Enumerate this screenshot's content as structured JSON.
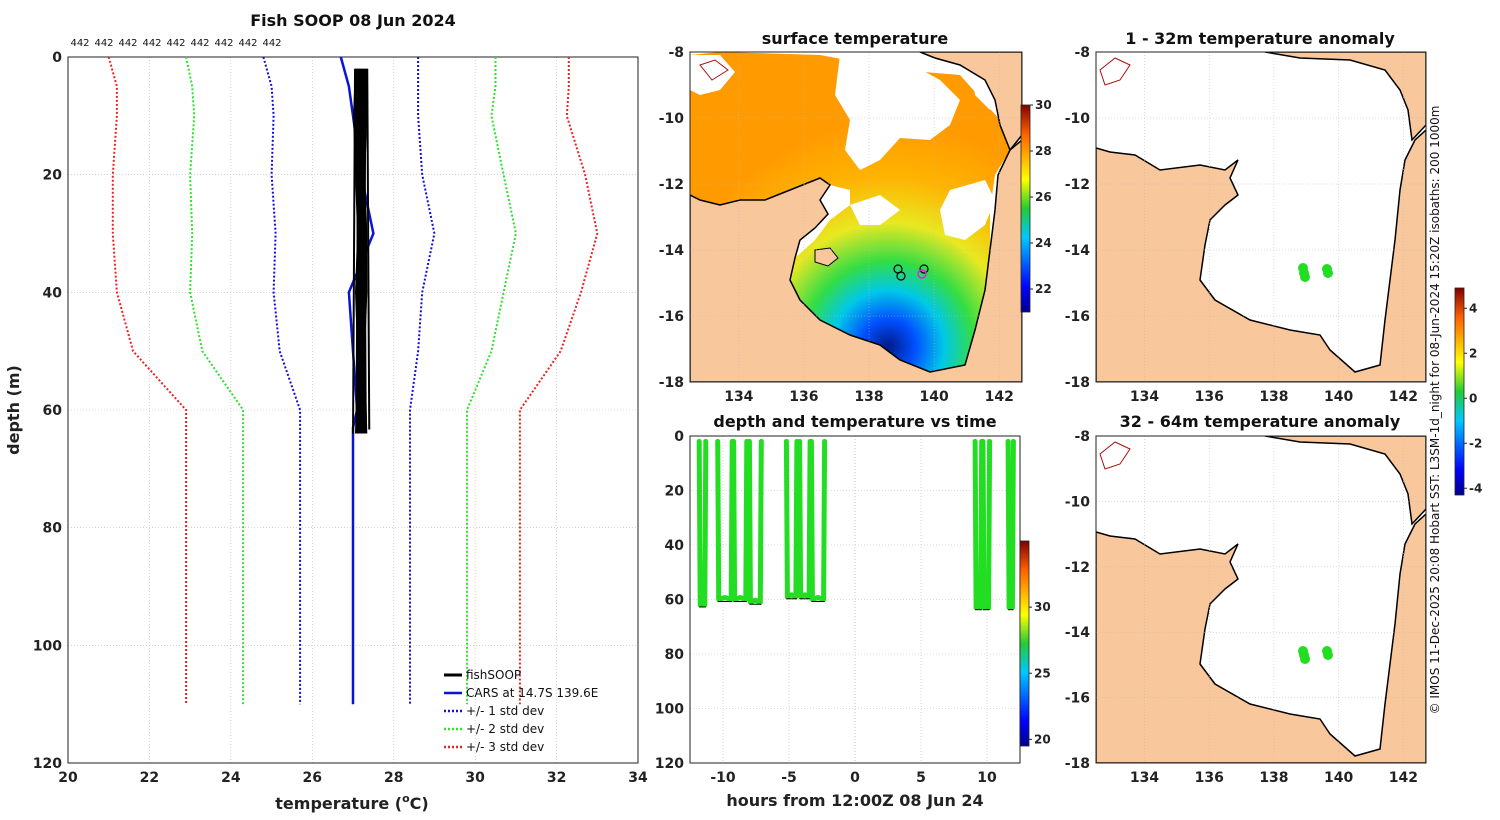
{
  "credit": "© IMOS 11-Dec-2025 20:08 Hobart SST: L3SM-1d_night for 08-Jun-2024 15:20Z isobaths: 200  1000m",
  "colors": {
    "fishsoop": "#000000",
    "cars": "#0a14d6",
    "std1": "#1010d8",
    "std2": "#33dd33",
    "std3": "#ee2222",
    "land": "#f8c79c",
    "marker": "#22dd22",
    "grid": "#bbbbbb"
  },
  "chart_data": [
    {
      "id": "profile",
      "type": "line",
      "title": "Fish SOOP 08 Jun 2024",
      "xlabel_main": "temperature (",
      "xlabel_sup": "o",
      "xlabel_unit": "C)",
      "ylabel": "depth (m)",
      "xlim": [
        20,
        34
      ],
      "ylim": [
        0,
        120
      ],
      "y_inverted": true,
      "x_ticks": [
        "20",
        "22",
        "24",
        "26",
        "28",
        "30",
        "32",
        "34"
      ],
      "y_ticks": [
        "0",
        "20",
        "40",
        "60",
        "80",
        "100",
        "120"
      ],
      "top_labels": [
        "442",
        "442",
        "442",
        "442",
        "442",
        "442",
        "442",
        "442",
        "442"
      ],
      "legend": [
        "fishSOOP",
        "CARS at 14.7S 139.6E",
        "+/- 1 std dev",
        "+/- 2 std dev",
        "+/- 3 std dev"
      ],
      "series": [
        {
          "name": "CARS mean",
          "style": "solid",
          "color": "#0a14d6",
          "depth": [
            0,
            5,
            10,
            20,
            30,
            40,
            50,
            60,
            63,
            110
          ],
          "temp": [
            26.7,
            26.9,
            27.0,
            27.2,
            27.5,
            26.9,
            27.0,
            27.1,
            27.0,
            27.0
          ]
        },
        {
          "name": "-1 std",
          "style": "dot",
          "color": "#1010d8",
          "depth": [
            0,
            5,
            10,
            20,
            30,
            40,
            50,
            60,
            110
          ],
          "temp": [
            24.8,
            25.0,
            25.05,
            25.0,
            25.1,
            25.05,
            25.2,
            25.7,
            25.7
          ]
        },
        {
          "name": "+1 std",
          "style": "dot",
          "color": "#1010d8",
          "depth": [
            0,
            5,
            10,
            20,
            30,
            40,
            50,
            60,
            110
          ],
          "temp": [
            28.6,
            28.6,
            28.6,
            28.7,
            29.0,
            28.7,
            28.6,
            28.4,
            28.4
          ]
        },
        {
          "name": "-2 std",
          "style": "dot",
          "color": "#33dd33",
          "depth": [
            0,
            5,
            10,
            20,
            30,
            40,
            50,
            60,
            110
          ],
          "temp": [
            22.9,
            23.05,
            23.1,
            23.0,
            23.05,
            23.0,
            23.3,
            24.3,
            24.3
          ]
        },
        {
          "name": "+2 std",
          "style": "dot",
          "color": "#33dd33",
          "depth": [
            0,
            5,
            10,
            20,
            30,
            40,
            50,
            60,
            110
          ],
          "temp": [
            30.5,
            30.5,
            30.4,
            30.7,
            31.0,
            30.7,
            30.4,
            29.8,
            29.8
          ]
        },
        {
          "name": "-3 std",
          "style": "dot",
          "color": "#ee2222",
          "depth": [
            0,
            5,
            10,
            20,
            30,
            40,
            50,
            60,
            110
          ],
          "temp": [
            21.0,
            21.2,
            21.2,
            21.1,
            21.1,
            21.2,
            21.6,
            22.9,
            22.9
          ]
        },
        {
          "name": "+3 std",
          "style": "dot",
          "color": "#ee2222",
          "depth": [
            0,
            5,
            10,
            20,
            30,
            40,
            50,
            60,
            110
          ],
          "temp": [
            32.3,
            32.3,
            32.25,
            32.7,
            33.0,
            32.6,
            32.1,
            31.1,
            31.1
          ]
        }
      ],
      "fishsoop_band": {
        "tmin": [
          27.05,
          27.0,
          27.05,
          27.1,
          27.05,
          27.1,
          27.05
        ],
        "tmax": [
          27.35,
          27.35,
          27.3,
          27.35,
          27.35,
          27.3,
          27.35
        ],
        "depth": [
          2,
          10,
          20,
          30,
          40,
          50,
          64
        ]
      }
    },
    {
      "id": "sst",
      "type": "heatmap",
      "title": "surface temperature",
      "x_ticks": [
        "134",
        "136",
        "138",
        "140",
        "142"
      ],
      "y_ticks": [
        "-8",
        "-10",
        "-12",
        "-14",
        "-16",
        "-18"
      ],
      "colorbar_ticks": [
        "30",
        "28",
        "26",
        "24",
        "22"
      ],
      "clim": [
        21,
        30
      ]
    },
    {
      "id": "time",
      "type": "scatter",
      "title": "depth and temperature vs time",
      "xlabel": "hours from 12:00Z 08 Jun 24",
      "xlim": [
        -12.5,
        12.5
      ],
      "ylim": [
        0,
        120
      ],
      "x_ticks": [
        "-10",
        "-5",
        "0",
        "5",
        "10"
      ],
      "y_ticks": [
        "0",
        "20",
        "40",
        "60",
        "80",
        "100",
        "120"
      ],
      "colorbar_ticks": [
        "30",
        "25",
        "20"
      ],
      "casts": [
        {
          "t0": -11.8,
          "t1": -11.3,
          "bottom": 62
        },
        {
          "t0": -10.4,
          "t1": -9.3,
          "bottom": 60
        },
        {
          "t0": -9.2,
          "t1": -8.2,
          "bottom": 60
        },
        {
          "t0": -8.0,
          "t1": -7.1,
          "bottom": 61
        },
        {
          "t0": -5.2,
          "t1": -4.4,
          "bottom": 59
        },
        {
          "t0": -4.2,
          "t1": -3.4,
          "bottom": 59
        },
        {
          "t0": -3.3,
          "t1": -2.3,
          "bottom": 60
        },
        {
          "t0": 9.1,
          "t1": 9.6,
          "bottom": 63
        },
        {
          "t0": 9.7,
          "t1": 10.2,
          "bottom": 63
        },
        {
          "t0": 11.6,
          "t1": 12.0,
          "bottom": 63
        }
      ]
    },
    {
      "id": "anom1",
      "type": "heatmap",
      "title": "1 - 32m temperature anomaly",
      "x_ticks": [
        "134",
        "136",
        "138",
        "140",
        "142"
      ],
      "y_ticks": [
        "-8",
        "-10",
        "-12",
        "-14",
        "-16",
        "-18"
      ]
    },
    {
      "id": "anom2",
      "type": "heatmap",
      "title": "32 - 64m temperature anomaly",
      "x_ticks": [
        "134",
        "136",
        "138",
        "140",
        "142"
      ],
      "y_ticks": [
        "-8",
        "-10",
        "-12",
        "-14",
        "-16",
        "-18"
      ],
      "colorbar_ticks": [
        "4",
        "2",
        "0",
        "-2",
        "-4"
      ],
      "clim": [
        -4.3,
        4.9
      ]
    }
  ]
}
